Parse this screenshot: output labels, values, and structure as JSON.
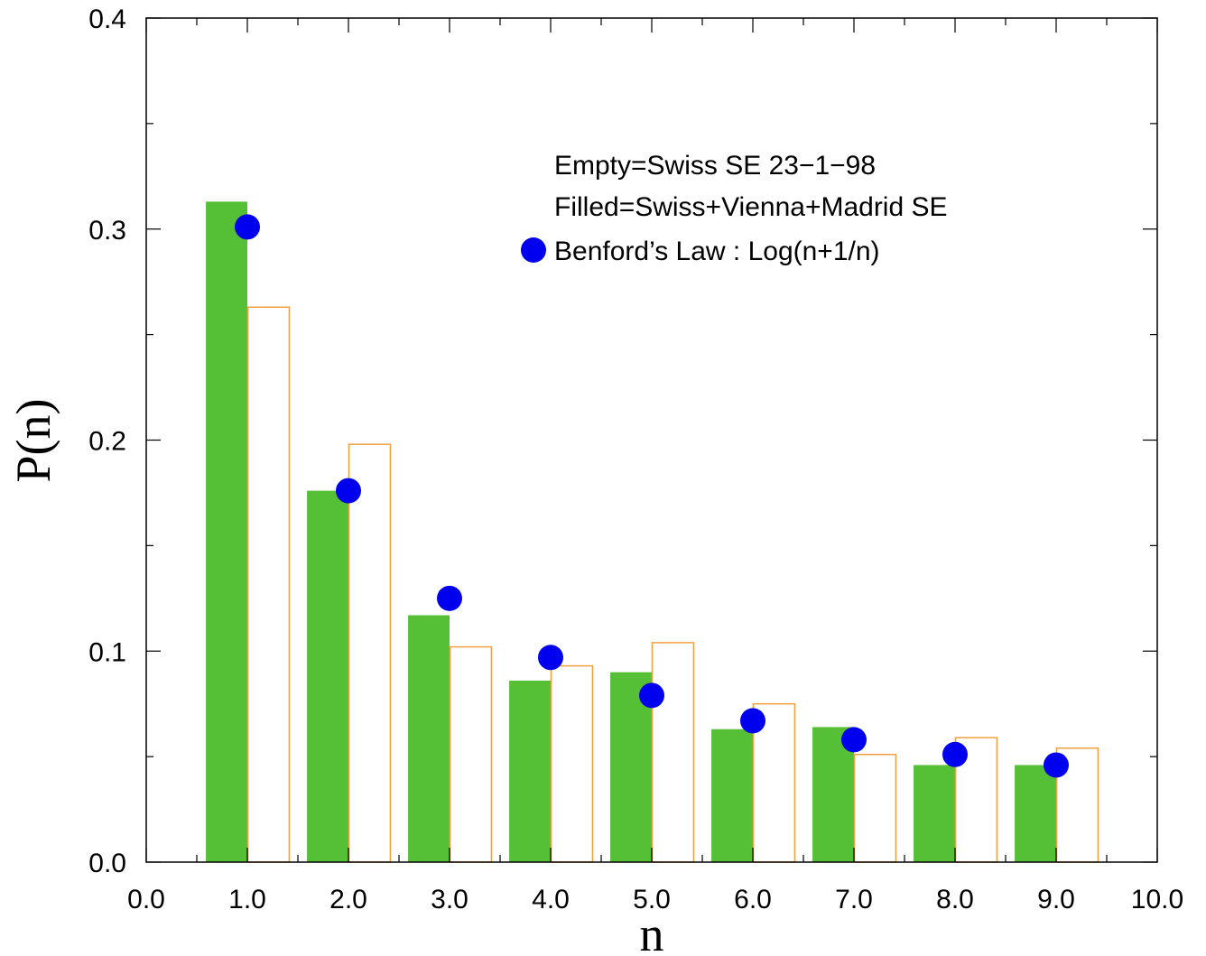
{
  "chart_data": {
    "type": "bar",
    "xlabel": "n",
    "ylabel": "P(n)",
    "xlim": [
      0,
      10
    ],
    "ylim": [
      0,
      0.4
    ],
    "x_ticks": [
      "0.0",
      "1.0",
      "2.0",
      "3.0",
      "4.0",
      "5.0",
      "6.0",
      "7.0",
      "8.0",
      "9.0",
      "10.0"
    ],
    "y_ticks": [
      "0.0",
      "0.1",
      "0.2",
      "0.3",
      "0.4"
    ],
    "x": [
      1,
      2,
      3,
      4,
      5,
      6,
      7,
      8,
      9
    ],
    "series": [
      {
        "name": "Filled=Swiss+Vienna+Madrid SE",
        "kind": "filled-bar",
        "color": "#55bf36",
        "values": [
          0.313,
          0.176,
          0.117,
          0.086,
          0.09,
          0.063,
          0.064,
          0.046,
          0.046
        ]
      },
      {
        "name": "Empty=Swiss SE 23−1−98",
        "kind": "empty-bar",
        "color": "#f0a040",
        "values": [
          0.263,
          0.198,
          0.102,
          0.093,
          0.104,
          0.075,
          0.051,
          0.059,
          0.054
        ]
      },
      {
        "name": "Benford’s Law : Log(n+1/n)",
        "kind": "marker",
        "color": "#0000ee",
        "values": [
          0.301,
          0.176,
          0.125,
          0.097,
          0.079,
          0.067,
          0.058,
          0.051,
          0.046
        ]
      }
    ],
    "legend_position": "top-right",
    "grid": false
  }
}
